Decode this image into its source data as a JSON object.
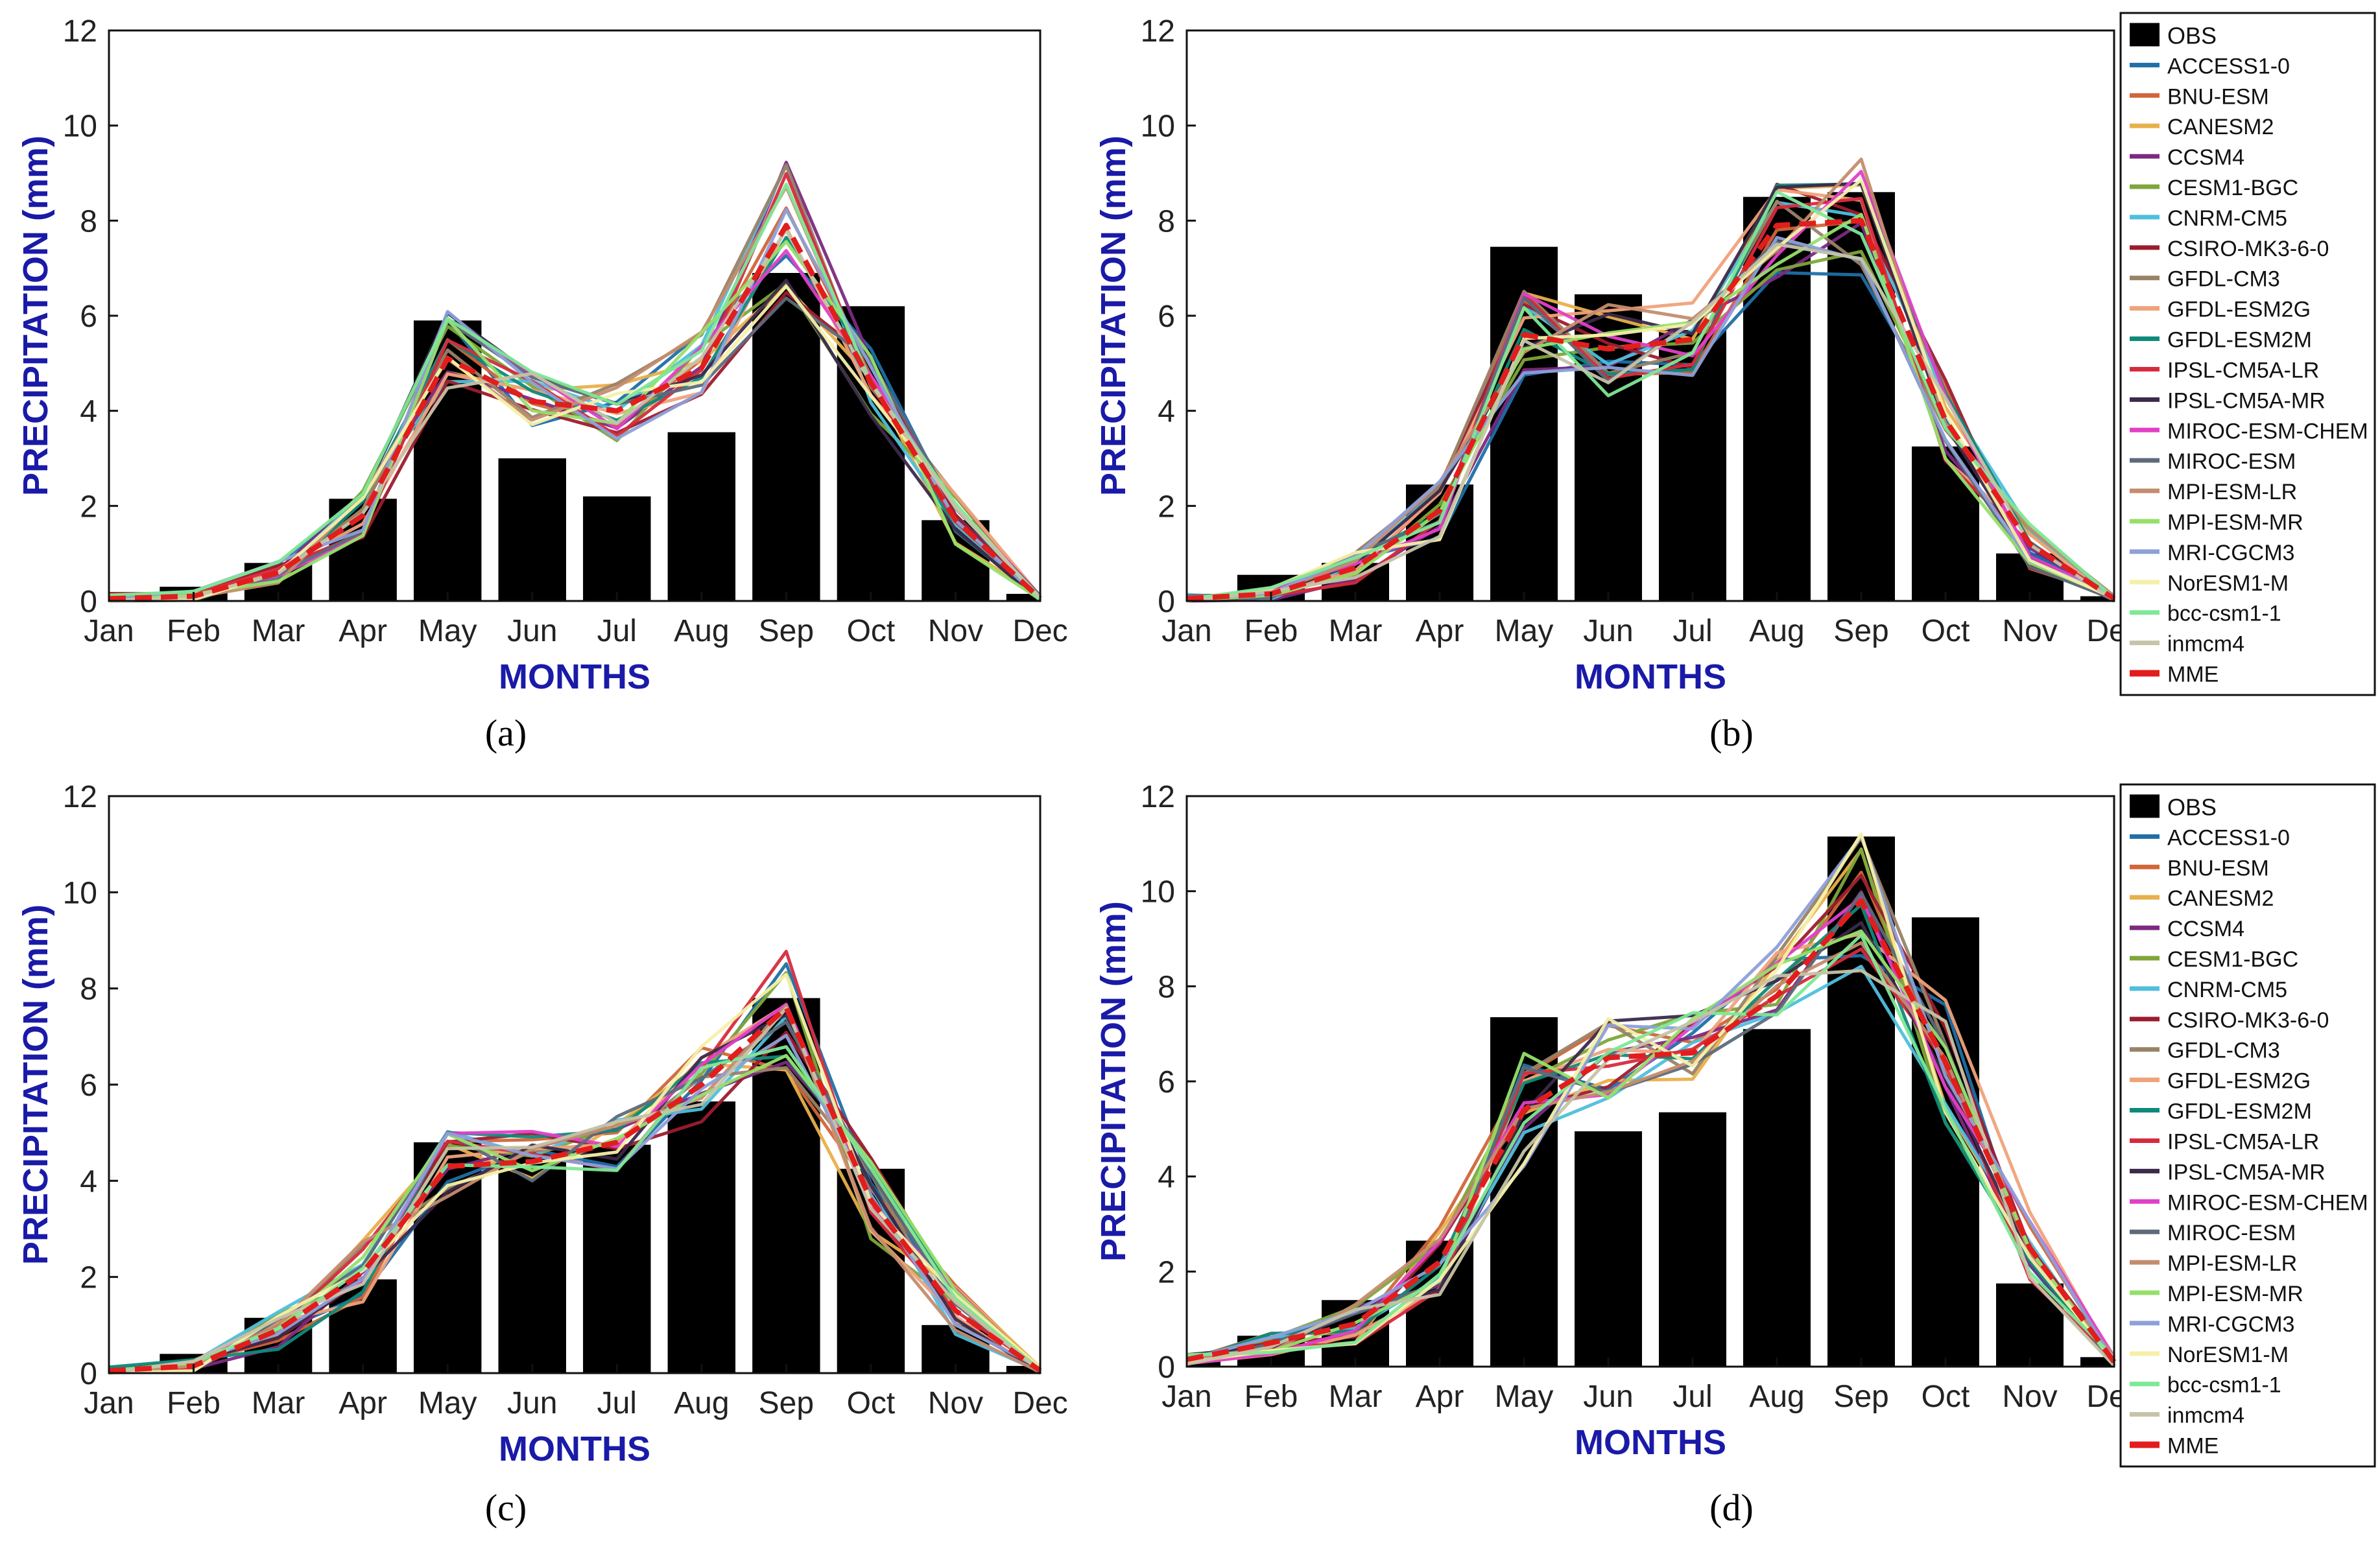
{
  "figure": {
    "months": [
      "Jan",
      "Feb",
      "Mar",
      "Apr",
      "May",
      "Jun",
      "Jul",
      "Aug",
      "Sep",
      "Oct",
      "Nov",
      "Dec"
    ],
    "xlabel": "MONTHS",
    "ylabel": "PRECIPITATION (mm)",
    "ylim": [
      0,
      12
    ],
    "yticks": [
      "0",
      "2",
      "4",
      "6",
      "8",
      "10",
      "12"
    ],
    "legend_obs_label": "OBS",
    "model_names": [
      "ACCESS1-0",
      "BNU-ESM",
      "CANESM2",
      "CCSM4",
      "CESM1-BGC",
      "CNRM-CM5",
      "CSIRO-MK3-6-0",
      "GFDL-CM3",
      "GFDL-ESM2G",
      "GFDL-ESM2M",
      "IPSL-CM5A-LR",
      "IPSL-CM5A-MR",
      "MIROC-ESM-CHEM",
      "MIROC-ESM",
      "MPI-ESM-LR",
      "MPI-ESM-MR",
      "MRI-CGCM3",
      "NorESM1-M",
      "bcc-csm1-1",
      "inmcm4",
      "MME"
    ],
    "model_colors": [
      "#1f6fa8",
      "#d0663a",
      "#e8b04a",
      "#7b2a80",
      "#7ea63a",
      "#4fbfdc",
      "#9c1c2e",
      "#9a8266",
      "#f0a27a",
      "#0f8a7a",
      "#d62b3e",
      "#3b2a4a",
      "#e040c8",
      "#5d6a7a",
      "#c48c6e",
      "#96e06a",
      "#8da0d8",
      "#f5f0a8",
      "#7ee896",
      "#c6c3a8",
      "#e21d1d"
    ],
    "obs_color": "#000000"
  },
  "chart_data": [
    {
      "panel_label": "(a)",
      "type": "bar+line",
      "categories": [
        "Jan",
        "Feb",
        "Mar",
        "Apr",
        "May",
        "Jun",
        "Jul",
        "Aug",
        "Sep",
        "Oct",
        "Nov",
        "Dec"
      ],
      "ylim": [
        0,
        12
      ],
      "xlabel": "MONTHS",
      "ylabel": "PRECIPITATION (mm)",
      "obs": [
        0.05,
        0.3,
        0.8,
        2.15,
        5.9,
        3.0,
        2.2,
        3.55,
        6.9,
        6.2,
        1.7,
        0.15
      ],
      "mme": [
        0.05,
        0.1,
        0.6,
        1.8,
        5.1,
        4.2,
        4.0,
        4.9,
        7.9,
        4.6,
        1.7,
        0.05
      ],
      "spread": [
        0.05,
        0.05,
        0.12,
        0.25,
        0.45,
        0.3,
        0.3,
        0.35,
        0.7,
        0.35,
        0.25,
        0.03
      ],
      "legend": "none"
    },
    {
      "panel_label": "(b)",
      "type": "bar+line",
      "categories": [
        "Jan",
        "Feb",
        "Mar",
        "Apr",
        "May",
        "Jun",
        "Jul",
        "Aug",
        "Sep",
        "Oct",
        "Nov",
        "Dec"
      ],
      "ylim": [
        0,
        12
      ],
      "xlabel": "MONTHS",
      "ylabel": "PRECIPITATION (mm)",
      "obs": [
        0.15,
        0.55,
        0.8,
        2.45,
        7.45,
        6.45,
        5.7,
        8.5,
        8.6,
        3.25,
        1.0,
        0.1
      ],
      "mme": [
        0.05,
        0.15,
        0.7,
        1.9,
        5.6,
        5.3,
        5.5,
        7.9,
        8.0,
        3.8,
        1.2,
        0.05
      ],
      "spread": [
        0.04,
        0.06,
        0.15,
        0.3,
        0.45,
        0.45,
        0.35,
        0.5,
        0.6,
        0.4,
        0.25,
        0.03
      ],
      "legend": "right"
    },
    {
      "panel_label": "(c)",
      "type": "bar+line",
      "categories": [
        "Jan",
        "Feb",
        "Mar",
        "Apr",
        "May",
        "Jun",
        "Jul",
        "Aug",
        "Sep",
        "Oct",
        "Nov",
        "Dec"
      ],
      "ylim": [
        0,
        12
      ],
      "xlabel": "MONTHS",
      "ylabel": "PRECIPITATION (mm)",
      "obs": [
        0.05,
        0.4,
        1.15,
        1.95,
        4.8,
        4.7,
        4.75,
        5.65,
        7.8,
        4.25,
        1.0,
        0.15
      ],
      "mme": [
        0.05,
        0.15,
        0.9,
        2.1,
        4.3,
        4.4,
        4.8,
        6.0,
        7.6,
        3.6,
        1.3,
        0.05
      ],
      "spread": [
        0.04,
        0.06,
        0.2,
        0.3,
        0.35,
        0.3,
        0.3,
        0.4,
        0.6,
        0.4,
        0.25,
        0.03
      ],
      "legend": "none"
    },
    {
      "panel_label": "(d)",
      "type": "bar+line",
      "categories": [
        "Jan",
        "Feb",
        "Mar",
        "Apr",
        "May",
        "Jun",
        "Jul",
        "Aug",
        "Sep",
        "Oct",
        "Nov",
        "Dec"
      ],
      "ylim": [
        0,
        12
      ],
      "xlabel": "MONTHS",
      "ylabel": "PRECIPITATION (mm)",
      "obs": [
        0.15,
        0.65,
        1.4,
        2.65,
        7.35,
        4.95,
        5.35,
        7.1,
        11.15,
        9.45,
        1.75,
        0.2
      ],
      "mme": [
        0.15,
        0.5,
        0.9,
        2.2,
        5.4,
        6.5,
        6.6,
        7.8,
        9.8,
        6.4,
        2.5,
        0.1
      ],
      "spread": [
        0.05,
        0.12,
        0.2,
        0.35,
        0.55,
        0.4,
        0.4,
        0.5,
        0.7,
        0.6,
        0.35,
        0.05
      ],
      "legend": "right"
    }
  ]
}
